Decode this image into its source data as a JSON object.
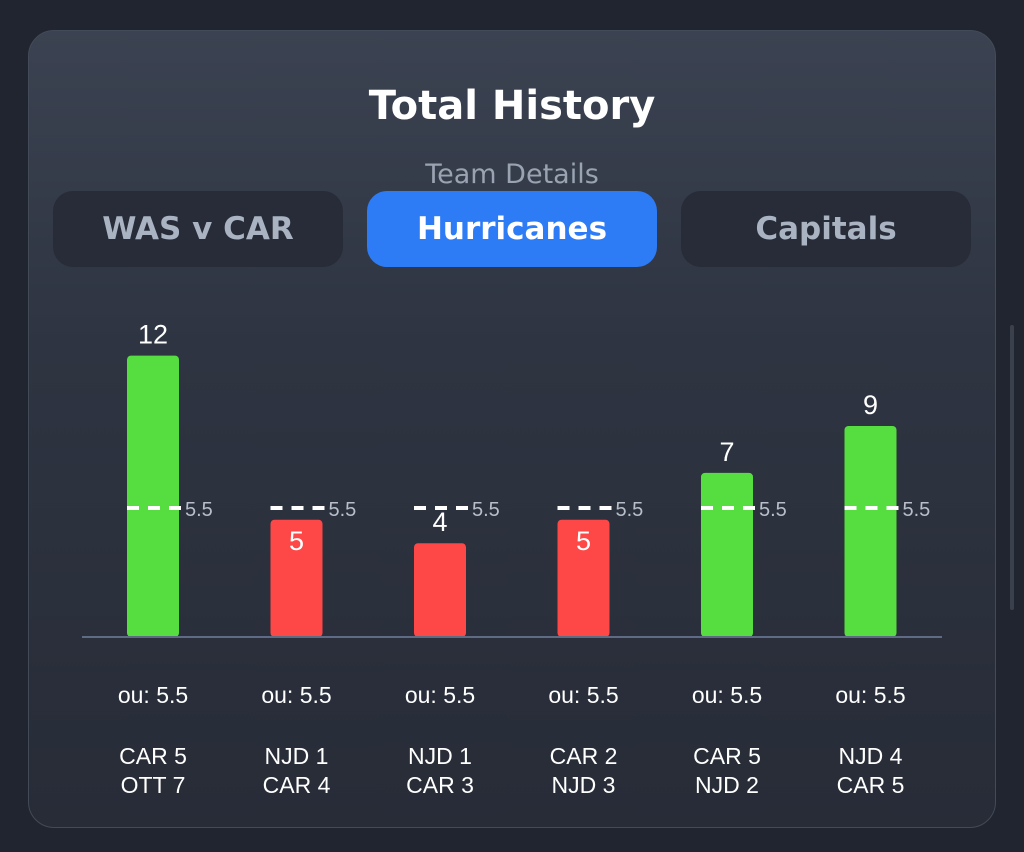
{
  "header": {
    "title": "Total History",
    "subtitle": "Team Details"
  },
  "tabs": [
    {
      "label": "WAS v CAR",
      "active": false
    },
    {
      "label": "Hurricanes",
      "active": true
    },
    {
      "label": "Capitals",
      "active": false
    }
  ],
  "colors": {
    "over": "#56dd3f",
    "under": "#fe4747",
    "accent": "#2d7cf6"
  },
  "chart_data": {
    "type": "bar",
    "title": "Total History",
    "categories": [
      "CAR 5 / OTT 7",
      "NJD 1 / CAR 4",
      "NJD 1 / CAR 3",
      "CAR 2 / NJD 3",
      "CAR 5 / NJD 2",
      "NJD 4 / CAR 5"
    ],
    "values": [
      12,
      5,
      4,
      5,
      7,
      9
    ],
    "ou_lines": [
      5.5,
      5.5,
      5.5,
      5.5,
      5.5,
      5.5
    ],
    "ou_labels": [
      "ou: 5.5",
      "ou: 5.5",
      "ou: 5.5",
      "ou: 5.5",
      "ou: 5.5",
      "ou: 5.5"
    ],
    "games": [
      [
        "CAR 5",
        "OTT 7"
      ],
      [
        "NJD 1",
        "CAR 4"
      ],
      [
        "NJD 1",
        "CAR 3"
      ],
      [
        "CAR 2",
        "NJD 3"
      ],
      [
        "CAR 5",
        "NJD 2"
      ],
      [
        "NJD 4",
        "CAR 5"
      ]
    ],
    "ylim": [
      0,
      12
    ]
  }
}
